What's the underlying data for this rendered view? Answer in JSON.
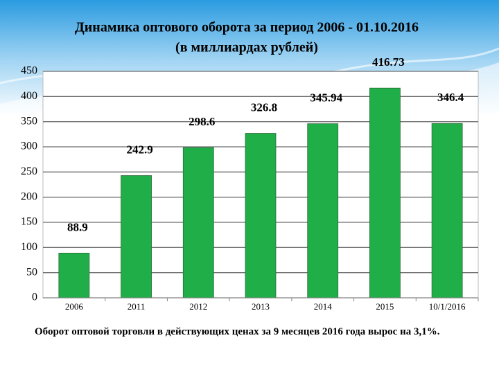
{
  "chart_data": {
    "type": "bar",
    "title": "Динамика оптового оборота за период 2006 - 01.10.2016",
    "subtitle": "(в миллиардах рублей)",
    "categories": [
      "2006",
      "2011",
      "2012",
      "2013",
      "2014",
      "2015",
      "10/1/2016"
    ],
    "values": [
      88.9,
      242.9,
      298.6,
      326.8,
      345.94,
      416.73,
      346.4
    ],
    "color": "#1fae48",
    "ylim": [
      0,
      450
    ],
    "yticks": [
      0,
      50,
      100,
      150,
      200,
      250,
      300,
      350,
      400,
      450
    ],
    "grid": true,
    "note": "Оборот оптовой торговли в действующих ценах за 9 месяцев 2016 года вырос на 3,1%."
  }
}
